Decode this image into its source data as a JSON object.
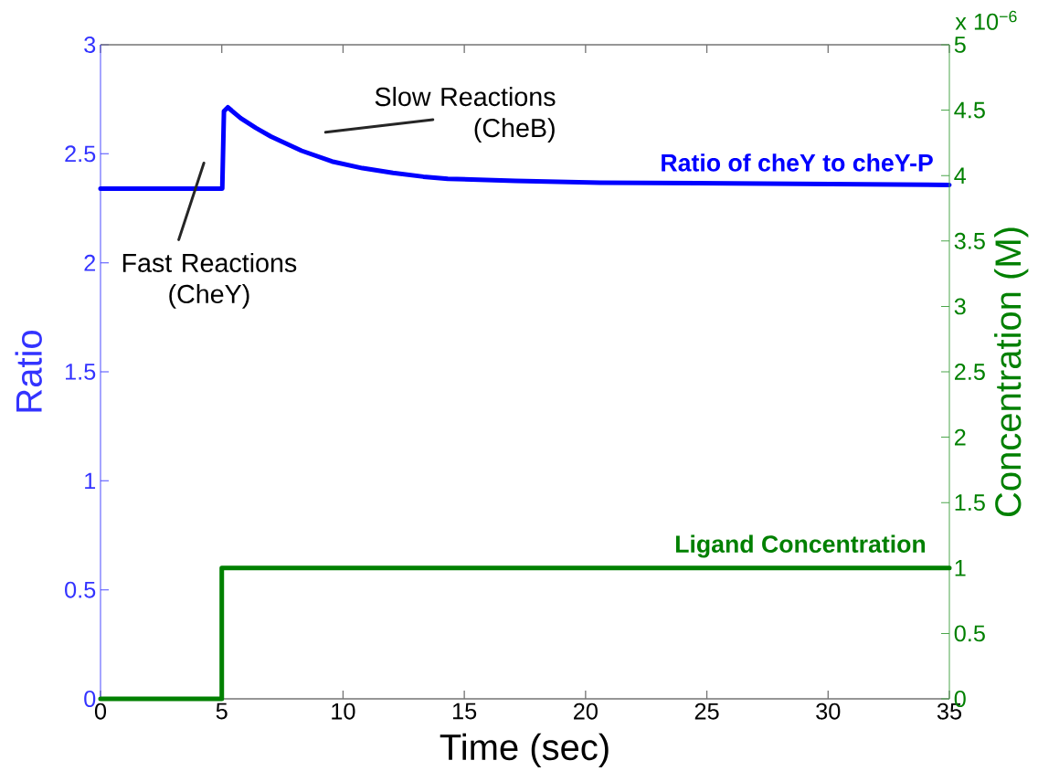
{
  "chart_data": {
    "type": "line",
    "xlabel": "Time (sec)",
    "ylabel": "Ratio",
    "y2label": "Concentration (M)",
    "annotations": [
      "x 10$^{−6}$",
      "Slow Reactions (CheB)",
      "Fast Reactions (CheY)"
    ],
    "xlim": [
      0,
      35
    ],
    "xticks": [
      0,
      5,
      10,
      15,
      20,
      25,
      30,
      35
    ],
    "ylim": [
      0,
      3
    ],
    "yticks": [
      0,
      0.5,
      1,
      1.5,
      2,
      2.5,
      3
    ],
    "y2lim": [
      0,
      5
    ],
    "y2ticks": [
      0,
      0.5,
      1,
      1.5,
      2,
      2.5,
      3,
      3.5,
      4,
      4.5,
      5
    ],
    "series": [
      {
        "name": "Ratio of cheY to cheY-P",
        "color": "#0000ff",
        "x": [
          0,
          5.02,
          5.09,
          5.25,
          5.78,
          6.41,
          7.03,
          7.66,
          8.29,
          9.54,
          10.8,
          12.06,
          13.31,
          14.32,
          17.12,
          20.6,
          26,
          35
        ],
        "values": [
          2.34,
          2.34,
          2.695,
          2.713,
          2.663,
          2.618,
          2.579,
          2.546,
          2.514,
          2.465,
          2.434,
          2.412,
          2.395,
          2.385,
          2.376,
          2.367,
          2.364,
          2.357
        ]
      },
      {
        "name": "Ligand Concentration",
        "color": "#008000",
        "axis": "y2",
        "x": [
          0,
          5,
          5,
          35
        ],
        "values": [
          0,
          0,
          1,
          1
        ]
      }
    ]
  }
}
